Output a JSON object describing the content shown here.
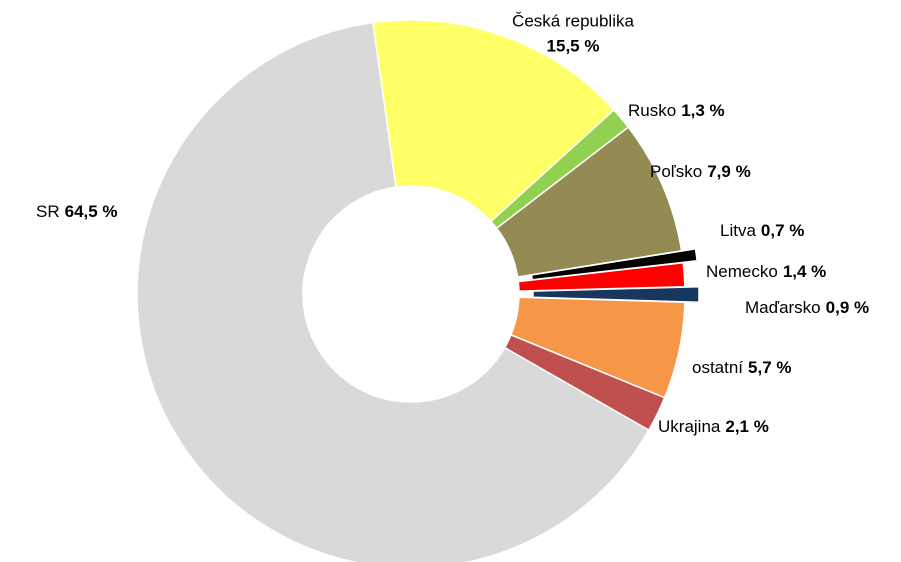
{
  "chart_data": {
    "type": "donut",
    "categories": [
      "Česká republika",
      "Rusko",
      "Poľsko",
      "Litva",
      "Nemecko",
      "Maďarsko",
      "ostatní",
      "Ukrajina",
      "SR"
    ],
    "values": [
      15.5,
      1.3,
      7.9,
      0.7,
      1.4,
      0.9,
      5.7,
      2.1,
      64.5
    ],
    "value_labels": [
      "15,5 %",
      "1,3 %",
      "7,9 %",
      "0,7 %",
      "1,4 %",
      "0,9 %",
      "5,7 %",
      "2,1 %",
      "64,5 %"
    ],
    "colors": [
      "#ffff66",
      "#92d050",
      "#948a54",
      "#000000",
      "#ff0000",
      "#17375e",
      "#f79646",
      "#c0504d",
      "#d9d9d9"
    ],
    "exploded": [
      "Litva",
      "Maďarsko"
    ]
  }
}
